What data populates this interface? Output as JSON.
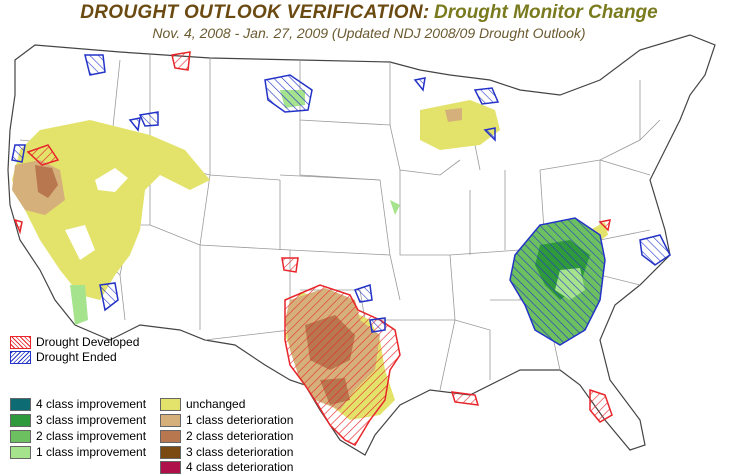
{
  "title": {
    "main": "DROUGHT OUTLOOK VERIFICATION:",
    "sub": "Drought Monitor Change",
    "period": "Nov. 4, 2008 - Jan. 27, 2009 (Updated NDJ 2008/09 Drought Outlook)"
  },
  "legend": {
    "hatch": [
      {
        "label": "Drought Developed",
        "color": "#e8252a"
      },
      {
        "label": "Drought Ended",
        "color": "#2433c7"
      }
    ],
    "left": [
      {
        "label": "4 class improvement",
        "color": "#0c6b73"
      },
      {
        "label": "3 class improvement",
        "color": "#2f9a3c"
      },
      {
        "label": "2 class improvement",
        "color": "#6cc060"
      },
      {
        "label": "1 class improvement",
        "color": "#a6e38d"
      }
    ],
    "right": [
      {
        "label": "unchanged",
        "color": "#e3e36c"
      },
      {
        "label": "1 class deterioration",
        "color": "#d6b07a"
      },
      {
        "label": "2 class deterioration",
        "color": "#b8774e"
      },
      {
        "label": "3 class deterioration",
        "color": "#7a4a12"
      },
      {
        "label": "4 class deterioration",
        "color": "#b0104a"
      }
    ]
  },
  "colors": {
    "title_brown": "#6b4a12",
    "title_olive": "#7a7a1e",
    "state_lines": "#9a9a9a",
    "coast": "#555555"
  }
}
